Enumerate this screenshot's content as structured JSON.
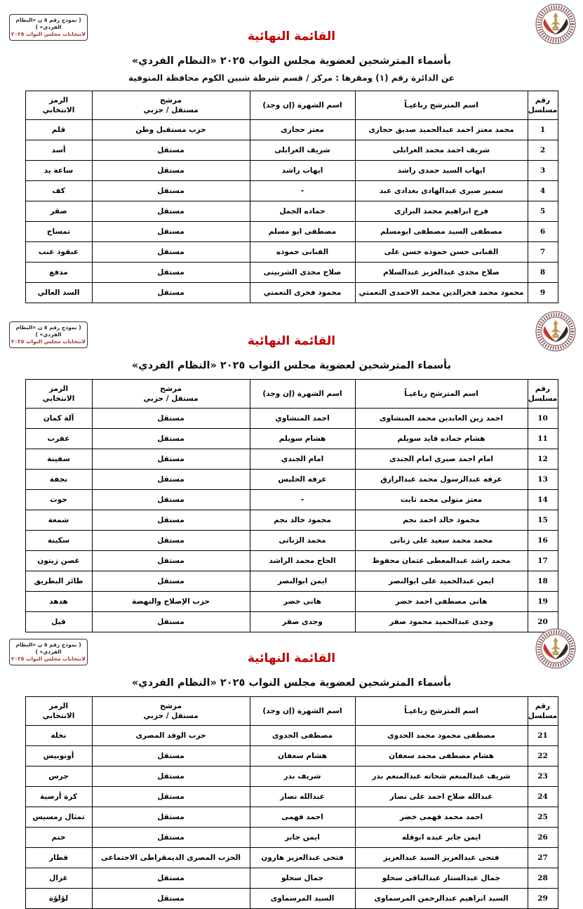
{
  "page": {
    "stamp": {
      "line1": "( نموذج رقم ٥ ن «النظام الفردي» )",
      "line2": "لانتخابات مجلس النواب ٢٠٢٥"
    },
    "title": "القائمة النهائية",
    "subtitle": "بأسماء المترشحين لعضوية مجلس النواب ٢٠٢٥ «النظام الفردي»",
    "district_line": "عن الدائرة رقم (١)   ومقرها : مركز / قسم شرطة شبين الكوم   محافظة المنوفية"
  },
  "colors": {
    "title_red": "#bf0000",
    "stamp_red": "#a23434",
    "logo_gold": "#c49a3f",
    "logo_flag_red": "#c23b2e",
    "logo_flag_black": "#2b2b2b"
  },
  "columns": [
    {
      "key": "serial",
      "label": "رقم\nمسلسل"
    },
    {
      "key": "name",
      "label": "اسم المترشح رباعيـاً"
    },
    {
      "key": "shahra",
      "label": "اسم الشهرة (إن وجد)"
    },
    {
      "key": "party",
      "label": "مرشح\nمستقل / حزبي"
    },
    {
      "key": "symbol",
      "label": "الرمز\nالانتخابي"
    }
  ],
  "sections": [
    {
      "show_district_line": true,
      "rows": [
        {
          "serial": "1",
          "name": "محمد معتز احمد عبدالحميد صديق حجازى",
          "shahra": "معتز حجازى",
          "party": "حزب مستقبل وطن",
          "symbol": "قلم"
        },
        {
          "serial": "2",
          "name": "شريف احمد محمد الغرابلى",
          "shahra": "شريف الغرابلى",
          "party": "مستقل",
          "symbol": "أسد"
        },
        {
          "serial": "3",
          "name": "ايهاب السيد حمدى راشد",
          "shahra": "ايهاب راشد",
          "party": "مستقل",
          "symbol": "ساعة يد"
        },
        {
          "serial": "4",
          "name": "سمير صبرى عبدالهادى بغدادى عبد",
          "shahra": "-",
          "party": "مستقل",
          "symbol": "كف"
        },
        {
          "serial": "5",
          "name": "فرج ابراهيم محمد البرازى",
          "shahra": "حماده الجمل",
          "party": "مستقل",
          "symbol": "صقر"
        },
        {
          "serial": "6",
          "name": "مصطفى السيد مصطفى ابومسلم",
          "shahra": "مصطفى ابو مسلم",
          "party": "مستقل",
          "symbol": "تمساح"
        },
        {
          "serial": "7",
          "name": "الفنانى حسن حموده حسن على",
          "shahra": "الفنانى حموده",
          "party": "مستقل",
          "symbol": "عنقود عنب"
        },
        {
          "serial": "8",
          "name": "صلاح مجدى عبدالعزيز عبدالسلام",
          "shahra": "صلاح مجدى الشربينى",
          "party": "مستقل",
          "symbol": "مدفع"
        },
        {
          "serial": "9",
          "name": "محمود محمد فخرالدين محمد الاحمدى التعمتي",
          "shahra": "محمود فخرى التعمتي",
          "party": "مستقل",
          "symbol": "السد العالي"
        }
      ]
    },
    {
      "show_district_line": false,
      "rows": [
        {
          "serial": "10",
          "name": "احمد زين العابدين محمد المنشاوى",
          "shahra": "احمد المنشاوي",
          "party": "مستقل",
          "symbol": "آلة كمان"
        },
        {
          "serial": "11",
          "name": "هشام حماده قايد سويلم",
          "shahra": "هشام سويلم",
          "party": "مستقل",
          "symbol": "عقرب"
        },
        {
          "serial": "12",
          "name": "امام احمد صبرى امام الجندى",
          "shahra": "امام الجندي",
          "party": "مستقل",
          "symbol": "سفينة"
        },
        {
          "serial": "13",
          "name": "عرفه عبدالرسول محمد عبدالرازق",
          "shahra": "عرفه الحليس",
          "party": "مستقل",
          "symbol": "نجفة"
        },
        {
          "serial": "14",
          "name": "معتز متولى محمد ثابت",
          "shahra": "-",
          "party": "مستقل",
          "symbol": "حوت"
        },
        {
          "serial": "15",
          "name": "محمود خالد احمد نجم",
          "shahra": "محمود خالد نجم",
          "party": "مستقل",
          "symbol": "شمعة"
        },
        {
          "serial": "16",
          "name": "محمد محمد سعيد على زناتى",
          "shahra": "محمد الزناتى",
          "party": "مستقل",
          "symbol": "سكينة"
        },
        {
          "serial": "17",
          "name": "محمد راشد عبدالمعطى عثمان محفوظ",
          "shahra": "الحاج محمد الراشد",
          "party": "مستقل",
          "symbol": "غصن زيتون"
        },
        {
          "serial": "18",
          "name": "ايمن عبدالحميد على ابوالنصر",
          "shahra": "ايمن ابوالنصر",
          "party": "مستقل",
          "symbol": "طائر البطريق"
        },
        {
          "serial": "19",
          "name": "هانى مصطفى احمد خضر",
          "shahra": "هانى خضر",
          "party": "حزب الإصلاح والنهضة",
          "symbol": "هدهد"
        },
        {
          "serial": "20",
          "name": "وجدى عبدالحميد محمود صقر",
          "shahra": "وجدى صقر",
          "party": "مستقل",
          "symbol": "فيل"
        }
      ]
    },
    {
      "show_district_line": false,
      "rows": [
        {
          "serial": "21",
          "name": "مصطفى محمود محمد الحدوى",
          "shahra": "مصطفى الحدوى",
          "party": "حزب الوفد المصرى",
          "symbol": "نخلة"
        },
        {
          "serial": "22",
          "name": "هشام مصطفى محمد سعفان",
          "shahra": "هشام سعفان",
          "party": "مستقل",
          "symbol": "أوتوبيس"
        },
        {
          "serial": "23",
          "name": "شريف عبدالمنعم شحاته عبدالمنعم بدر",
          "shahra": "شريف بدر",
          "party": "مستقل",
          "symbol": "جرس"
        },
        {
          "serial": "24",
          "name": "عبدالله صلاح احمد على نصار",
          "shahra": "عبدالله نصار",
          "party": "مستقل",
          "symbol": "كرة أرضية"
        },
        {
          "serial": "25",
          "name": "احمد محمد فهمى خضر",
          "shahra": "احمد فهمى",
          "party": "مستقل",
          "symbol": "تمثال رمسيس"
        },
        {
          "serial": "26",
          "name": "ايمن جابر عبده ابوقله",
          "shahra": "ايمن جابر",
          "party": "مستقل",
          "symbol": "ختم"
        },
        {
          "serial": "27",
          "name": "فتحى عبدالعزيز السيد عبدالعزيز",
          "shahra": "فتحى عبدالعزيز هارون",
          "party": "الحزب المصرى الديمقراطى الاجتماعى",
          "symbol": "قطار"
        },
        {
          "serial": "28",
          "name": "جمال عبدالستار عبدالباقى سحلو",
          "shahra": "جمال سحلو",
          "party": "مستقل",
          "symbol": "غزال"
        },
        {
          "serial": "29",
          "name": "السيد ابراهيم عبدالرحمن المرسماوى",
          "shahra": "السيد المرسماوى",
          "party": "مستقل",
          "symbol": "لؤلؤة"
        }
      ]
    }
  ]
}
